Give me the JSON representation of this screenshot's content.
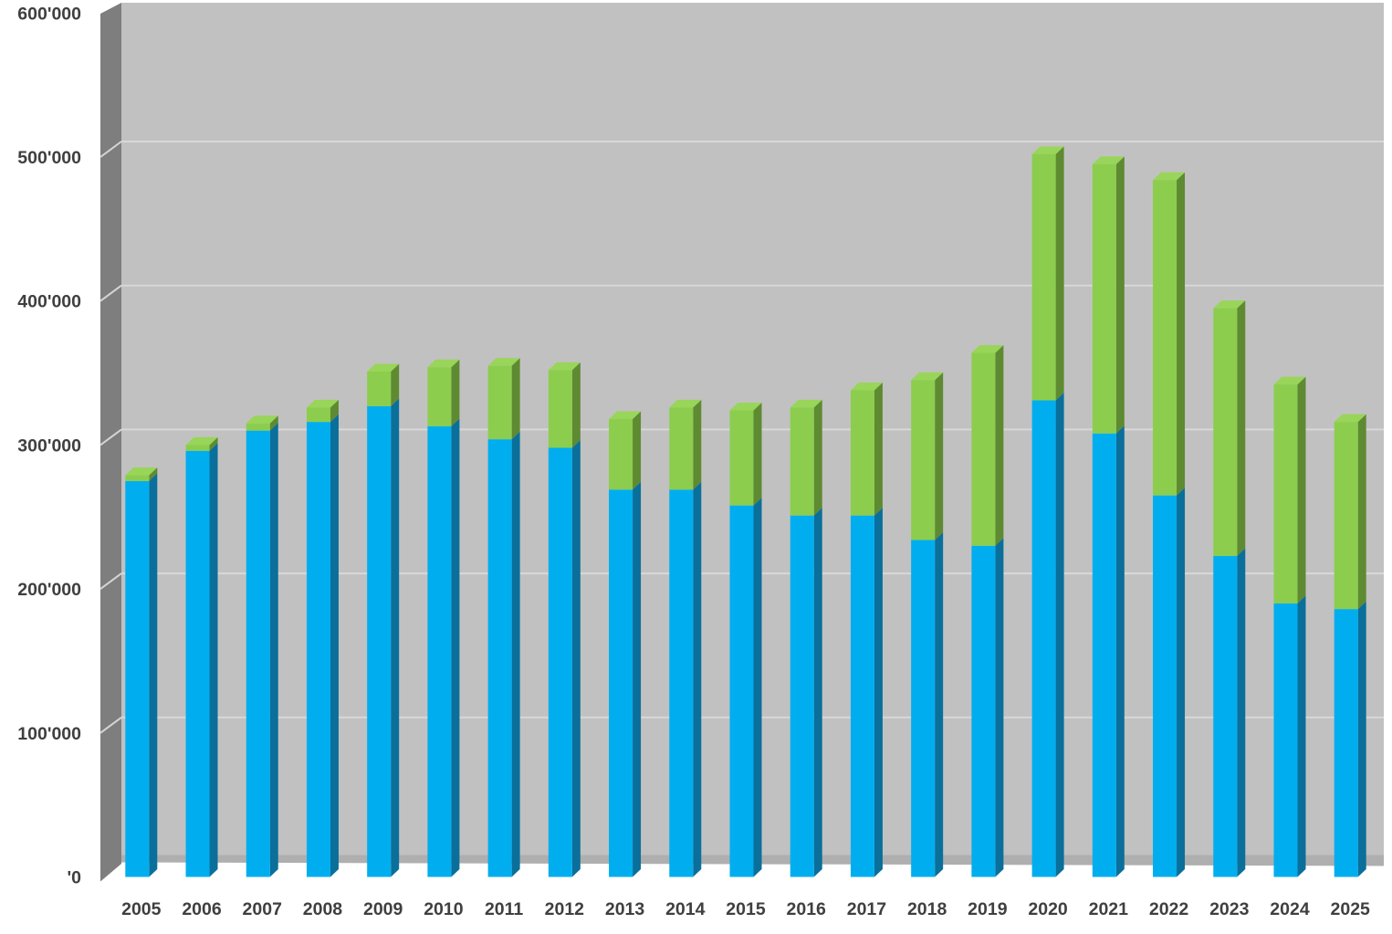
{
  "chart_data": {
    "type": "bar",
    "stacked": true,
    "title": "",
    "xlabel": "",
    "ylabel": "",
    "grid": true,
    "legend": "none",
    "ylim": [
      0,
      600000
    ],
    "ytick_step": 100000,
    "ytick_labels": [
      "'0",
      "100'000",
      "200'000",
      "300'000",
      "400'000",
      "500'000",
      "600'000"
    ],
    "categories": [
      "2005",
      "2006",
      "2007",
      "2008",
      "2009",
      "2010",
      "2011",
      "2012",
      "2013",
      "2014",
      "2015",
      "2016",
      "2017",
      "2018",
      "2019",
      "2020",
      "2021",
      "2022",
      "2023",
      "2024",
      "2025"
    ],
    "series": [
      {
        "name": "blue",
        "color": "#00AEEF",
        "side_color": "#0A6F9B",
        "values": [
          275000,
          296000,
          310000,
          316000,
          327000,
          313000,
          304000,
          298000,
          269000,
          269000,
          258000,
          251000,
          251000,
          234000,
          230000,
          331000,
          308000,
          265000,
          223000,
          190000,
          186000
        ]
      },
      {
        "name": "green",
        "color": "#8CCD4E",
        "side_color": "#5E8A31",
        "top_color": "#98D559",
        "values": [
          4000,
          4000,
          5000,
          10000,
          24000,
          41000,
          51000,
          54000,
          49000,
          57000,
          66000,
          75000,
          87000,
          111000,
          134000,
          171000,
          187000,
          219000,
          172000,
          152000,
          130000
        ]
      }
    ],
    "totals": [
      279000,
      300000,
      315000,
      326000,
      351000,
      354000,
      355000,
      352000,
      318000,
      326000,
      324000,
      326000,
      338000,
      345000,
      364000,
      502000,
      495000,
      484000,
      395000,
      342000,
      316000
    ],
    "style3d": {
      "back_wall_color": "#C1C1C1",
      "left_wall_color": "#7E7E7E",
      "floor_color": "#AFAFAF",
      "gridline_color": "#D8D8D8",
      "wall_gridline_color": "#D5D5D5",
      "label_color": "#3F3F3F"
    }
  }
}
